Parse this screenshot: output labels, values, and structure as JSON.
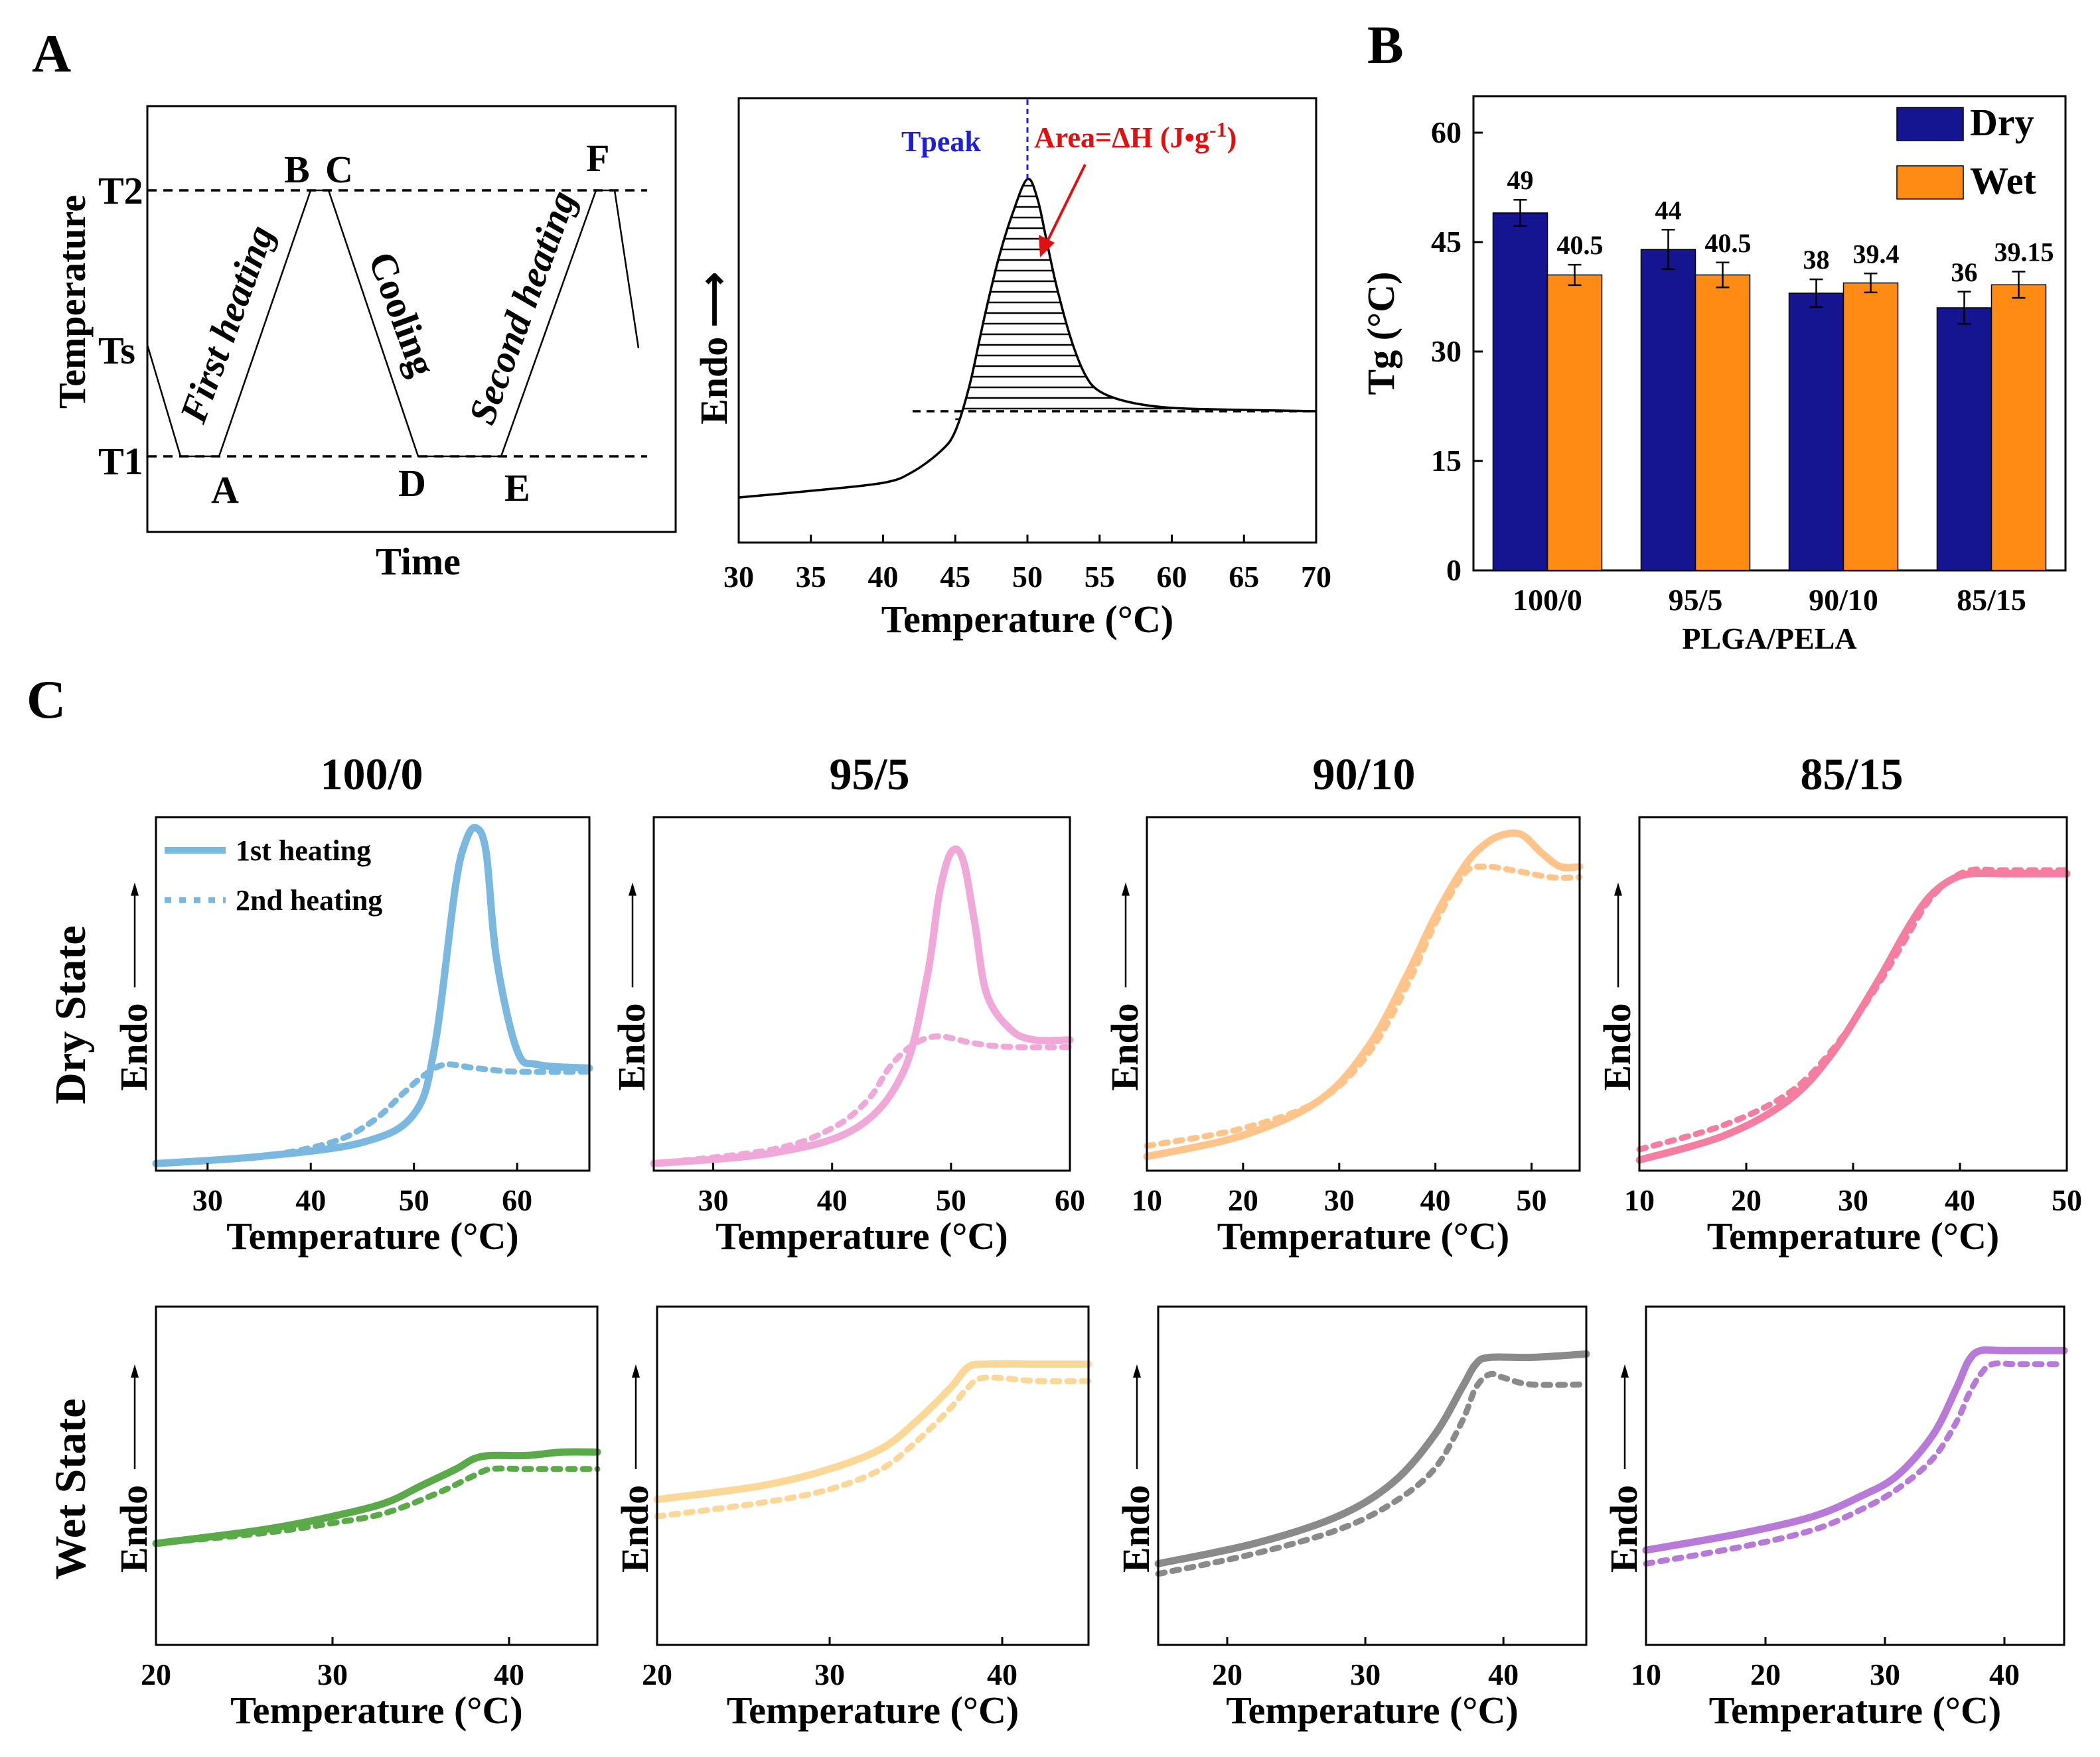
{
  "panel_labels": {
    "a": "A",
    "b": "B",
    "c": "C"
  },
  "schematic": {
    "ylabel": "Temperature",
    "xlabel": "Time",
    "y_levels": [
      "T2",
      "Ts",
      "T1"
    ],
    "points": [
      "A",
      "B",
      "C",
      "D",
      "E",
      "F"
    ],
    "segments": [
      "First heating",
      "Cooling",
      "Second heating"
    ]
  },
  "dsc_example": {
    "ylabel": "Endo",
    "xlabel": "Temperature (°C)",
    "tpeak_label": "Tpeak",
    "area_label": "Area=ΔH (J•g",
    "area_sup": "-1",
    "area_close": ")",
    "xticks": [
      "30",
      "35",
      "40",
      "45",
      "50",
      "55",
      "60",
      "65",
      "70"
    ],
    "colors": {
      "tpeak": "#1f1fd6",
      "area": "#e01010"
    }
  },
  "row_labels": {
    "dry": "Dry State",
    "wet": "Wet State"
  },
  "endo_label": "Endo",
  "temp_label": "Temperature (°C)",
  "legend": {
    "first": "1st heating",
    "second": "2nd heating"
  },
  "chart_data": [
    {
      "type": "bar",
      "title": "",
      "xlabel": "PLGA/PELA",
      "ylabel": "Tg (°C)",
      "ylim": [
        0,
        65
      ],
      "yticks": [
        "0",
        "15",
        "30",
        "45",
        "60"
      ],
      "categories": [
        "100/0",
        "95/5",
        "90/10",
        "85/15"
      ],
      "series": [
        {
          "name": "Dry",
          "color": "#151591",
          "values": [
            49,
            44,
            38,
            36
          ],
          "labels": [
            "49",
            "44",
            "38",
            "36"
          ],
          "errors": [
            1.8,
            2.7,
            1.9,
            2.2
          ]
        },
        {
          "name": "Wet",
          "color": "#ff8a14",
          "values": [
            40.5,
            40.5,
            39.4,
            39.15
          ],
          "labels": [
            "40.5",
            "40.5",
            "39.4",
            "39.15"
          ],
          "errors": [
            1.4,
            1.7,
            1.3,
            1.8
          ]
        }
      ],
      "legend_position": "top-right"
    },
    {
      "type": "line",
      "title": "100/0",
      "state": "Dry State",
      "color": "#7ab8e0",
      "xlim": [
        25,
        67
      ],
      "xticks": [
        30,
        40,
        50,
        60
      ],
      "series": [
        {
          "name": "1st heating",
          "style": "solid",
          "x": [
            25,
            35,
            45,
            50,
            52,
            54,
            55,
            56,
            57,
            58,
            60,
            62,
            67
          ],
          "y": [
            0.02,
            0.04,
            0.08,
            0.16,
            0.35,
            0.8,
            0.93,
            0.97,
            0.9,
            0.6,
            0.34,
            0.3,
            0.29
          ]
        },
        {
          "name": "2nd heating",
          "style": "dotted",
          "x": [
            25,
            35,
            42,
            46,
            49,
            51,
            53,
            56,
            60,
            67
          ],
          "y": [
            0.02,
            0.04,
            0.08,
            0.14,
            0.22,
            0.27,
            0.3,
            0.29,
            0.28,
            0.28
          ]
        }
      ]
    },
    {
      "type": "line",
      "title": "95/5",
      "state": "Dry State",
      "color": "#f0a8d8",
      "xlim": [
        25,
        60
      ],
      "xticks": [
        30,
        40,
        50,
        60
      ],
      "series": [
        {
          "name": "1st heating",
          "style": "solid",
          "x": [
            25,
            35,
            42,
            46,
            48,
            49,
            50,
            51,
            52,
            53,
            55,
            57,
            60
          ],
          "y": [
            0.02,
            0.05,
            0.12,
            0.28,
            0.55,
            0.78,
            0.9,
            0.88,
            0.7,
            0.5,
            0.4,
            0.37,
            0.37
          ]
        },
        {
          "name": "2nd heating",
          "style": "dotted",
          "x": [
            25,
            35,
            40,
            43,
            45,
            47,
            49,
            52,
            55,
            60
          ],
          "y": [
            0.02,
            0.06,
            0.12,
            0.2,
            0.3,
            0.36,
            0.38,
            0.36,
            0.35,
            0.35
          ]
        }
      ]
    },
    {
      "type": "line",
      "title": "90/10",
      "state": "Dry State",
      "color": "#ffc48a",
      "xlim": [
        10,
        55
      ],
      "xticks": [
        10,
        20,
        30,
        40,
        50
      ],
      "series": [
        {
          "name": "1st heating",
          "style": "solid",
          "x": [
            10,
            20,
            28,
            33,
            37,
            40,
            43,
            45,
            47,
            49,
            51,
            53,
            55
          ],
          "y": [
            0.04,
            0.1,
            0.2,
            0.35,
            0.55,
            0.72,
            0.86,
            0.92,
            0.95,
            0.95,
            0.9,
            0.86,
            0.86
          ]
        },
        {
          "name": "2nd heating",
          "style": "dotted",
          "x": [
            10,
            20,
            28,
            33,
            37,
            40,
            43,
            45,
            48,
            52,
            55
          ],
          "y": [
            0.07,
            0.12,
            0.2,
            0.33,
            0.52,
            0.7,
            0.84,
            0.86,
            0.85,
            0.83,
            0.83
          ]
        }
      ]
    },
    {
      "type": "line",
      "title": "85/15",
      "state": "Dry State",
      "color": "#f47ea0",
      "xlim": [
        10,
        50
      ],
      "xticks": [
        10,
        20,
        30,
        40,
        50
      ],
      "series": [
        {
          "name": "1st heating",
          "style": "solid",
          "x": [
            10,
            18,
            24,
            28,
            32,
            35,
            37,
            39,
            41,
            44,
            47,
            50
          ],
          "y": [
            0.03,
            0.1,
            0.2,
            0.33,
            0.52,
            0.68,
            0.77,
            0.82,
            0.84,
            0.84,
            0.84,
            0.84
          ]
        },
        {
          "name": "2nd heating",
          "style": "dotted",
          "x": [
            10,
            18,
            24,
            28,
            32,
            35,
            37,
            39,
            41,
            44,
            50
          ],
          "y": [
            0.06,
            0.13,
            0.22,
            0.34,
            0.51,
            0.66,
            0.76,
            0.82,
            0.85,
            0.85,
            0.85
          ]
        }
      ]
    },
    {
      "type": "line",
      "title": "100/0",
      "state": "Wet State",
      "color": "#5aaa4a",
      "xlim": [
        20,
        45
      ],
      "xticks": [
        20,
        30,
        40
      ],
      "series": [
        {
          "name": "1st heating",
          "style": "solid",
          "x": [
            20,
            26,
            30,
            33,
            35,
            37,
            38,
            39,
            41,
            43,
            45
          ],
          "y": [
            0.3,
            0.34,
            0.38,
            0.42,
            0.47,
            0.52,
            0.55,
            0.56,
            0.56,
            0.57,
            0.57
          ]
        },
        {
          "name": "2nd heating",
          "style": "dotted",
          "x": [
            20,
            26,
            30,
            33,
            36,
            38,
            39,
            41,
            43,
            45
          ],
          "y": [
            0.3,
            0.33,
            0.36,
            0.39,
            0.45,
            0.5,
            0.52,
            0.52,
            0.52,
            0.52
          ]
        }
      ]
    },
    {
      "type": "line",
      "title": "95/5",
      "state": "Wet State",
      "color": "#fcd898",
      "xlim": [
        20,
        45
      ],
      "xticks": [
        20,
        30,
        40
      ],
      "series": [
        {
          "name": "1st heating",
          "style": "solid",
          "x": [
            20,
            26,
            30,
            33,
            35,
            37,
            38,
            39,
            42,
            45
          ],
          "y": [
            0.43,
            0.47,
            0.52,
            0.58,
            0.66,
            0.76,
            0.82,
            0.83,
            0.83,
            0.83
          ]
        },
        {
          "name": "2nd heating",
          "style": "dotted",
          "x": [
            20,
            26,
            30,
            33,
            35,
            37,
            38,
            39,
            42,
            45
          ],
          "y": [
            0.38,
            0.42,
            0.46,
            0.52,
            0.6,
            0.7,
            0.76,
            0.79,
            0.78,
            0.78
          ]
        }
      ]
    },
    {
      "type": "line",
      "title": "90/10",
      "state": "Wet State",
      "color": "#8a8a8a",
      "xlim": [
        15,
        46
      ],
      "xticks": [
        20,
        30,
        40
      ],
      "series": [
        {
          "name": "1st heating",
          "style": "solid",
          "x": [
            15,
            22,
            28,
            32,
            35,
            37,
            38,
            39,
            42,
            46
          ],
          "y": [
            0.24,
            0.3,
            0.38,
            0.48,
            0.62,
            0.76,
            0.83,
            0.85,
            0.85,
            0.86
          ]
        },
        {
          "name": "2nd heating",
          "style": "dotted",
          "x": [
            15,
            22,
            28,
            32,
            35,
            37,
            38,
            39,
            40,
            42,
            46
          ],
          "y": [
            0.21,
            0.27,
            0.34,
            0.42,
            0.52,
            0.66,
            0.76,
            0.8,
            0.79,
            0.77,
            0.77
          ]
        }
      ]
    },
    {
      "type": "line",
      "title": "85/15",
      "state": "Wet State",
      "color": "#b77ad6",
      "xlim": [
        10,
        45
      ],
      "xticks": [
        10,
        20,
        30,
        40
      ],
      "series": [
        {
          "name": "1st heating",
          "style": "solid",
          "x": [
            10,
            18,
            24,
            28,
            31,
            34,
            36,
            37,
            38,
            40,
            45
          ],
          "y": [
            0.28,
            0.33,
            0.38,
            0.44,
            0.5,
            0.62,
            0.76,
            0.84,
            0.87,
            0.87,
            0.87
          ]
        },
        {
          "name": "2nd heating",
          "style": "dotted",
          "x": [
            10,
            18,
            24,
            28,
            31,
            34,
            36,
            37,
            38,
            39,
            41,
            45
          ],
          "y": [
            0.24,
            0.29,
            0.34,
            0.4,
            0.46,
            0.55,
            0.66,
            0.74,
            0.8,
            0.83,
            0.83,
            0.83
          ]
        }
      ]
    }
  ]
}
